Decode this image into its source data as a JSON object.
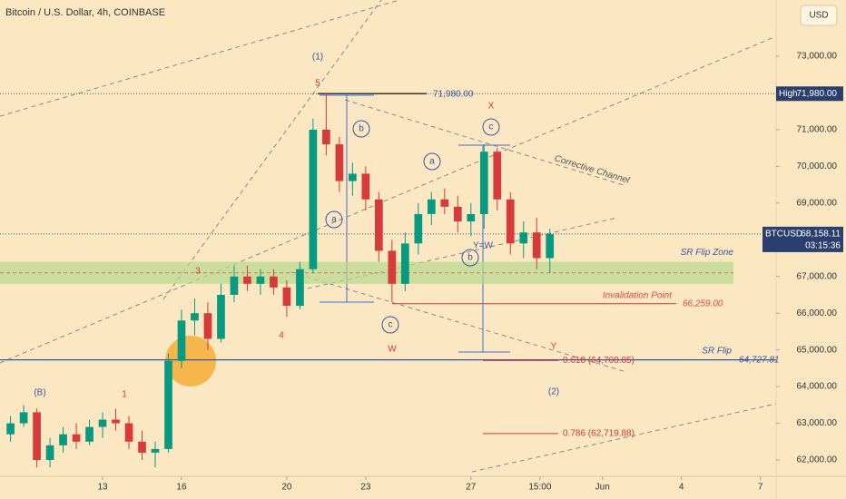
{
  "chart_data": {
    "type": "candlestick",
    "title": "Bitcoin / U.S. Dollar, 4h, COINBASE",
    "currency": "USD",
    "xlim": [
      9.1,
      38.6
    ],
    "xticks": [
      13,
      16,
      20,
      23,
      27,
      {
        "value": 29.625,
        "label": "15:00"
      },
      {
        "value": 32,
        "label": "Jun"
      },
      {
        "value": 35,
        "label": "4"
      },
      {
        "value": 38,
        "label": "7"
      }
    ],
    "ylim": [
      61555,
      74533
    ],
    "yticks": [
      {
        "value": 62000,
        "label": "62,000.00"
      },
      {
        "value": 63000,
        "label": "63,000.00"
      },
      {
        "value": 64000,
        "label": "64,000.00"
      },
      {
        "value": 65000,
        "label": "65,000.00"
      },
      {
        "value": 66000,
        "label": "66,000.00"
      },
      {
        "value": 67000,
        "label": "67,000.00"
      },
      {
        "value": 68000,
        "label": "68,000.00"
      },
      {
        "value": 69000,
        "label": "69,000.00"
      },
      {
        "value": 70000,
        "label": "70,000.00"
      },
      {
        "value": 71000,
        "label": "71,000.00"
      },
      {
        "value": 73000,
        "label": "73,000.00"
      }
    ],
    "up_color": "#089981",
    "down_color": "#d63a3a",
    "x": [
      9.5,
      10,
      10.5,
      11,
      11.5,
      12,
      12.5,
      13,
      13.5,
      14,
      14.5,
      15,
      15.5,
      16,
      16.5,
      17,
      17.5,
      18,
      18.5,
      19,
      19.5,
      20,
      20.5,
      21,
      21.5,
      22,
      22.5,
      23,
      23.5,
      24,
      24.5,
      25,
      25.5,
      26,
      26.5,
      27,
      27.5,
      28,
      28.5,
      29,
      29.5,
      30
    ],
    "open": [
      62700,
      63000,
      63300,
      62000,
      62400,
      62700,
      62500,
      62900,
      63100,
      63000,
      62500,
      62200,
      62300,
      64700,
      65800,
      66000,
      65300,
      66500,
      67000,
      66800,
      67000,
      66700,
      66200,
      67200,
      71000,
      70600,
      69600,
      69800,
      69100,
      67700,
      66800,
      67900,
      68700,
      69100,
      68900,
      68500,
      68700,
      70400,
      69100,
      67900,
      68200,
      67500
    ],
    "high": [
      63200,
      63500,
      63400,
      62600,
      62900,
      63000,
      63100,
      63300,
      63400,
      63200,
      62800,
      62500,
      64900,
      66100,
      66400,
      66300,
      66800,
      67300,
      67300,
      67200,
      67200,
      66900,
      67400,
      71300,
      71980,
      70800,
      70100,
      70000,
      69300,
      68000,
      68200,
      69000,
      69300,
      69400,
      69200,
      69000,
      70600,
      70500,
      69300,
      68500,
      68600,
      68300
    ],
    "low": [
      62500,
      62900,
      61800,
      61800,
      62200,
      62300,
      62400,
      62600,
      62800,
      62300,
      62000,
      61800,
      62200,
      64500,
      65400,
      65000,
      65200,
      66300,
      66600,
      66500,
      66500,
      65900,
      66100,
      67100,
      70300,
      69300,
      69200,
      68800,
      67400,
      66300,
      66600,
      67600,
      68400,
      68700,
      68200,
      68100,
      68300,
      68800,
      67600,
      67500,
      67200,
      67100
    ],
    "close": [
      63000,
      63300,
      62000,
      62400,
      62700,
      62500,
      62900,
      63100,
      63000,
      62500,
      62200,
      62300,
      64700,
      65800,
      66000,
      65300,
      66500,
      67000,
      66800,
      67000,
      66700,
      66200,
      67200,
      71000,
      70600,
      69600,
      69800,
      69100,
      67700,
      66800,
      67900,
      68700,
      69100,
      68900,
      68500,
      68700,
      70400,
      69100,
      67900,
      68200,
      67500,
      68158
    ],
    "high_marker": {
      "label": "High",
      "value": 71980,
      "value_label": "71,980.00"
    },
    "last_price": {
      "symbol": "BTCUSD",
      "value": 68158.11,
      "value_label": "68,158.11",
      "countdown": "03:15:36"
    },
    "zone": {
      "name": "SR Flip Zone",
      "from": 66800,
      "to": 67400
    },
    "levels": [
      {
        "name": "Invalidation Point",
        "value": 66259,
        "value_label": "66,259.00",
        "color": "#e04a4a"
      },
      {
        "name": "SR Flip",
        "value": 64727.81,
        "value_label": "64,727.81",
        "color": "#3a55a0"
      }
    ],
    "fib_levels": [
      {
        "label": "0.618 (64,708.85)",
        "value": 64708.85
      },
      {
        "label": "0.786 (62,719.88)",
        "value": 62719.88
      }
    ],
    "annotations": [
      "(1)",
      "5",
      "X",
      "c",
      "b",
      "a",
      "a",
      "b",
      "Y=W",
      "c",
      "W",
      "4",
      "3",
      "1",
      "(B)",
      "Y",
      "(2)",
      "Corrective Channel",
      "71,980.00"
    ]
  }
}
